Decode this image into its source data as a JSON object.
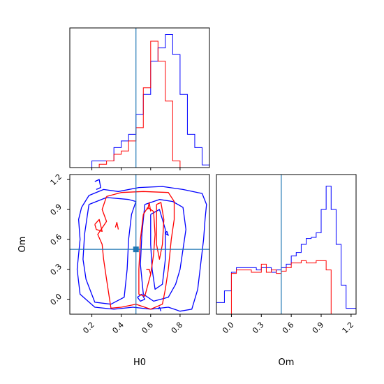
{
  "chart_data": [
    {
      "panel": "H0-marginal",
      "type": "histogram",
      "xlim": [
        0.05,
        1.0
      ],
      "y_ticks_shown": false,
      "bins": [
        0.05,
        0.1,
        0.15,
        0.2,
        0.25,
        0.3,
        0.35,
        0.4,
        0.45,
        0.5,
        0.55,
        0.6,
        0.65,
        0.7,
        0.75,
        0.8,
        0.85,
        0.9,
        0.95,
        1.0
      ],
      "series": [
        {
          "color": "#0000ff",
          "counts": [
            0,
            0,
            0,
            1,
            1,
            1,
            3,
            4,
            5,
            8,
            11,
            16,
            18,
            20,
            17,
            11,
            5,
            3,
            0.4
          ]
        },
        {
          "color": "#ff0000",
          "counts": [
            0,
            0,
            0,
            0,
            0.5,
            1,
            2,
            2.5,
            4,
            6,
            12,
            19,
            16,
            10,
            1,
            0,
            0,
            0,
            0
          ]
        }
      ],
      "truth": {
        "x": 0.5,
        "color": "#1f77b4"
      }
    },
    {
      "panel": "H0-Om-joint",
      "type": "contour",
      "xlabel": "H0",
      "ylabel": "Om",
      "xlim": [
        0.05,
        1.0
      ],
      "ylim": [
        -0.15,
        1.25
      ],
      "xticks": [
        "0.2",
        "0.4",
        "0.6",
        "0.8"
      ],
      "yticks": [
        "0.0",
        "0.3",
        "0.6",
        "0.9",
        "1.2"
      ],
      "truth": {
        "x": 0.5,
        "y": 0.5,
        "color": "#1f77b4"
      },
      "series": [
        {
          "color": "#0000ff",
          "contours": [
            [
              [
                0.22,
                1.18
              ],
              [
                0.25,
                1.2
              ],
              [
                0.26,
                1.12
              ],
              [
                0.23,
                1.1
              ]
            ],
            [
              [
                0.13,
                0.92
              ],
              [
                0.18,
                1.04
              ],
              [
                0.28,
                1.1
              ],
              [
                0.38,
                1.08
              ],
              [
                0.52,
                1.12
              ],
              [
                0.68,
                1.13
              ],
              [
                0.82,
                1.1
              ],
              [
                0.95,
                1.06
              ],
              [
                0.98,
                0.95
              ],
              [
                0.97,
                0.8
              ],
              [
                0.96,
                0.6
              ],
              [
                0.94,
                0.35
              ],
              [
                0.92,
                0.1
              ],
              [
                0.88,
                -0.1
              ],
              [
                0.8,
                -0.12
              ],
              [
                0.72,
                -0.08
              ],
              [
                0.6,
                -0.1
              ],
              [
                0.48,
                -0.08
              ],
              [
                0.35,
                -0.1
              ],
              [
                0.22,
                -0.08
              ],
              [
                0.12,
                0.05
              ],
              [
                0.1,
                0.3
              ],
              [
                0.12,
                0.6
              ],
              [
                0.11,
                0.8
              ],
              [
                0.13,
                0.92
              ]
            ],
            [
              [
                0.18,
                0.95
              ],
              [
                0.3,
                1.02
              ],
              [
                0.45,
                1.0
              ],
              [
                0.5,
                0.98
              ],
              [
                0.47,
                0.85
              ],
              [
                0.45,
                0.6
              ],
              [
                0.44,
                0.3
              ],
              [
                0.42,
                0.02
              ],
              [
                0.33,
                -0.05
              ],
              [
                0.22,
                -0.03
              ],
              [
                0.16,
                0.2
              ],
              [
                0.14,
                0.4
              ],
              [
                0.15,
                0.65
              ],
              [
                0.17,
                0.85
              ],
              [
                0.18,
                0.95
              ]
            ],
            [
              [
                0.56,
                0.95
              ],
              [
                0.66,
                1.0
              ],
              [
                0.75,
                0.98
              ],
              [
                0.82,
                0.92
              ],
              [
                0.84,
                0.7
              ],
              [
                0.82,
                0.5
              ],
              [
                0.8,
                0.3
              ],
              [
                0.77,
                0.15
              ],
              [
                0.72,
                0.02
              ],
              [
                0.62,
                -0.02
              ],
              [
                0.55,
                0.05
              ],
              [
                0.53,
                0.35
              ],
              [
                0.54,
                0.65
              ],
              [
                0.56,
                0.95
              ]
            ],
            [
              [
                0.6,
                0.85
              ],
              [
                0.66,
                0.9
              ],
              [
                0.7,
                0.7
              ],
              [
                0.7,
                0.4
              ],
              [
                0.68,
                0.15
              ],
              [
                0.63,
                0.1
              ],
              [
                0.61,
                0.3
              ],
              [
                0.6,
                0.55
              ],
              [
                0.6,
                0.85
              ]
            ],
            [
              [
                0.51,
                0.02
              ],
              [
                0.54,
                0.05
              ],
              [
                0.56,
                0.0
              ],
              [
                0.53,
                -0.02
              ],
              [
                0.51,
                0.02
              ]
            ],
            [
              [
                0.65,
                -0.1
              ],
              [
                0.66,
                -0.08
              ],
              [
                0.67,
                -0.12
              ]
            ],
            [
              [
                0.7,
                0.66
              ],
              [
                0.71,
                0.68
              ],
              [
                0.72,
                0.64
              ],
              [
                0.7,
                0.66
              ]
            ]
          ]
        },
        {
          "color": "#ff0000",
          "contours": [
            [
              [
                0.3,
                1.03
              ],
              [
                0.4,
                1.07
              ],
              [
                0.55,
                1.08
              ],
              [
                0.72,
                1.07
              ],
              [
                0.76,
                0.98
              ],
              [
                0.76,
                0.8
              ],
              [
                0.74,
                0.6
              ],
              [
                0.72,
                0.3
              ],
              [
                0.7,
                0.1
              ],
              [
                0.68,
                -0.05
              ],
              [
                0.6,
                -0.1
              ],
              [
                0.5,
                -0.05
              ],
              [
                0.4,
                -0.08
              ],
              [
                0.33,
                -0.09
              ],
              [
                0.3,
                0.2
              ],
              [
                0.28,
                0.4
              ],
              [
                0.27,
                0.55
              ],
              [
                0.24,
                0.65
              ],
              [
                0.3,
                0.78
              ],
              [
                0.27,
                0.9
              ],
              [
                0.3,
                1.03
              ]
            ],
            [
              [
                0.58,
                0.92
              ],
              [
                0.62,
                0.88
              ],
              [
                0.63,
                0.65
              ],
              [
                0.62,
                0.45
              ],
              [
                0.6,
                0.25
              ],
              [
                0.56,
                0.03
              ],
              [
                0.52,
                0.05
              ],
              [
                0.52,
                0.3
              ],
              [
                0.53,
                0.6
              ],
              [
                0.55,
                0.85
              ],
              [
                0.58,
                0.92
              ]
            ],
            [
              [
                0.64,
                0.95
              ],
              [
                0.67,
                0.97
              ],
              [
                0.69,
                0.8
              ],
              [
                0.68,
                0.55
              ],
              [
                0.66,
                0.4
              ],
              [
                0.64,
                0.55
              ],
              [
                0.64,
                0.8
              ],
              [
                0.64,
                0.95
              ]
            ],
            [
              [
                0.22,
                0.75
              ],
              [
                0.25,
                0.8
              ],
              [
                0.27,
                0.68
              ],
              [
                0.23,
                0.7
              ],
              [
                0.22,
                0.75
              ]
            ],
            [
              [
                0.36,
                0.72
              ],
              [
                0.37,
                0.77
              ],
              [
                0.38,
                0.7
              ]
            ],
            [
              [
                0.58,
                0.9
              ],
              [
                0.59,
                0.97
              ],
              [
                0.6,
                0.88
              ]
            ],
            [
              [
                0.57,
                0.3
              ],
              [
                0.59,
                0.3
              ],
              [
                0.6,
                0.25
              ]
            ]
          ]
        }
      ]
    },
    {
      "panel": "Om-marginal",
      "type": "histogram",
      "xlabel": "Om",
      "xlim": [
        -0.15,
        1.25
      ],
      "xticks": [
        "0.0",
        "0.3",
        "0.6",
        "0.9",
        "1.2"
      ],
      "y_ticks_shown": false,
      "bins": [
        -0.15,
        -0.07,
        0.0,
        0.05,
        0.1,
        0.15,
        0.2,
        0.25,
        0.3,
        0.35,
        0.4,
        0.45,
        0.5,
        0.55,
        0.6,
        0.65,
        0.7,
        0.75,
        0.8,
        0.85,
        0.9,
        0.95,
        1.0,
        1.05,
        1.1,
        1.15,
        1.25
      ],
      "series": [
        {
          "color": "#0000ff",
          "counts": [
            1,
            2,
            3.6,
            4,
            4,
            4,
            4,
            3.8,
            4,
            4,
            3.6,
            3.8,
            4,
            4.3,
            5,
            5.3,
            6,
            6.5,
            6.6,
            7,
            9,
            11,
            9,
            6,
            2.5,
            0.5
          ]
        },
        {
          "color": "#ff0000",
          "counts": [
            0,
            0,
            3.5,
            3.8,
            3.8,
            3.8,
            3.6,
            3.6,
            4.3,
            3.6,
            3.8,
            3.5,
            3.7,
            4,
            4.4,
            4.4,
            4.6,
            4.4,
            4.4,
            4.6,
            4.6,
            3.8,
            0,
            0,
            0,
            0
          ]
        }
      ],
      "truth": {
        "x": 0.5,
        "color": "#1f77b4"
      }
    }
  ]
}
